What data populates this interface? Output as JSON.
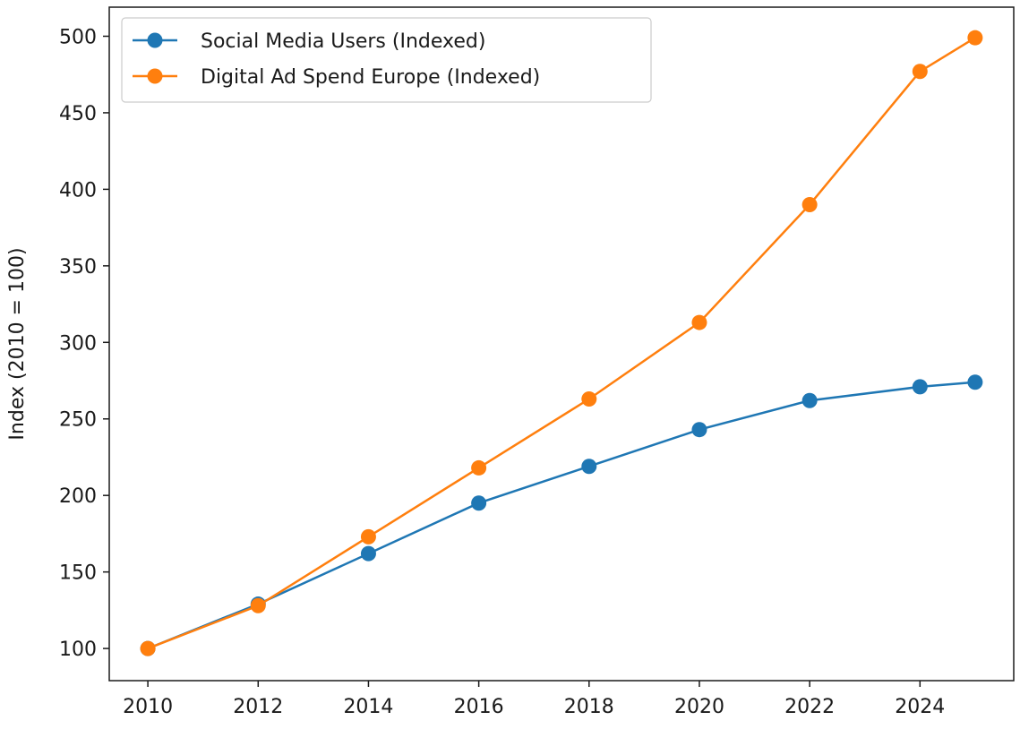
{
  "chart_data": {
    "type": "line",
    "title": "",
    "xlabel": "",
    "ylabel": "Index (2010 = 100)",
    "x": [
      2010,
      2012,
      2014,
      2016,
      2018,
      2020,
      2022,
      2024,
      2025
    ],
    "xlim": [
      2009.3,
      2025.7
    ],
    "ylim": [
      79,
      519
    ],
    "xticks": [
      2010,
      2012,
      2014,
      2016,
      2018,
      2020,
      2022,
      2024
    ],
    "yticks": [
      100,
      150,
      200,
      250,
      300,
      350,
      400,
      450,
      500
    ],
    "grid": false,
    "legend_position": "upper-left",
    "series": [
      {
        "name": "Social Media Users (Indexed)",
        "color": "#1f77b4",
        "values": [
          100,
          129,
          162,
          195,
          219,
          243,
          262,
          271,
          274
        ]
      },
      {
        "name": "Digital Ad Spend Europe (Indexed)",
        "color": "#ff7f0e",
        "values": [
          100,
          128,
          173,
          218,
          263,
          313,
          390,
          477,
          499
        ]
      }
    ]
  }
}
